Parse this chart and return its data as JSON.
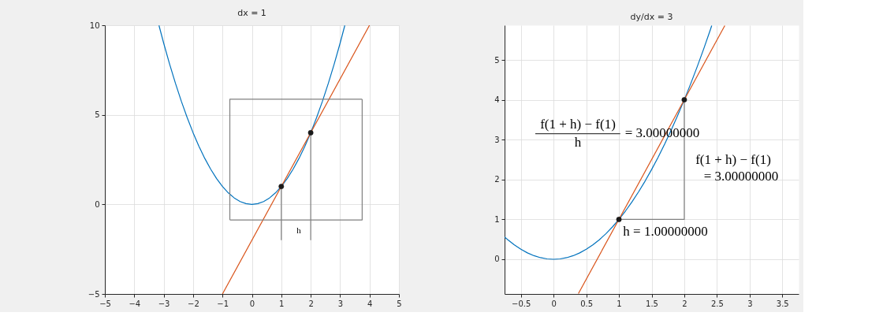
{
  "chart_data": [
    {
      "type": "line",
      "title": "dx = 1",
      "xlim": [
        -5,
        5
      ],
      "ylim": [
        -5,
        10
      ],
      "xticks": [
        -5,
        -4,
        -3,
        -2,
        -1,
        0,
        1,
        2,
        3,
        4,
        5
      ],
      "yticks": [
        -5,
        0,
        5,
        10
      ],
      "grid": true,
      "series": [
        {
          "color": "#0072bd",
          "x": [
            -3.16,
            -3,
            -2.8,
            -2.6,
            -2.4,
            -2.2,
            -2,
            -1.8,
            -1.6,
            -1.4,
            -1.2,
            -1,
            -0.8,
            -0.6,
            -0.4,
            -0.2,
            0,
            0.2,
            0.4,
            0.6,
            0.8,
            1,
            1.2,
            1.4,
            1.6,
            1.8,
            2,
            2.2,
            2.4,
            2.6,
            2.8,
            3,
            3.16
          ],
          "values": [
            9.99,
            9,
            7.84,
            6.76,
            5.76,
            4.84,
            4,
            3.24,
            2.56,
            1.96,
            1.44,
            1,
            0.64,
            0.36,
            0.16,
            0.04,
            0,
            0.04,
            0.16,
            0.36,
            0.64,
            1,
            1.44,
            1.96,
            2.56,
            3.24,
            4,
            4.84,
            5.76,
            6.76,
            7.84,
            9,
            9.99
          ]
        },
        {
          "color": "#d95319",
          "x": [
            -1,
            4
          ],
          "values": [
            -5,
            10
          ]
        },
        {
          "color": "#808080",
          "x": [
            -0.75,
            -0.75,
            3.75
          ],
          "values": [
            -0.87,
            5.87,
            5.87
          ]
        },
        {
          "color": "#808080",
          "x": [
            3.75,
            3.75,
            -0.75
          ],
          "values": [
            5.87,
            -0.87,
            -0.87
          ]
        },
        {
          "color": "#808080",
          "x": [
            1,
            1
          ],
          "values": [
            -2,
            1
          ]
        },
        {
          "color": "#808080",
          "x": [
            2,
            2
          ],
          "values": [
            -2,
            4
          ]
        },
        {
          "type": "scatter",
          "marker": "circle",
          "color": "#1a1a1a",
          "x": [
            1,
            2
          ],
          "values": [
            1,
            4
          ]
        }
      ],
      "annotations": [
        "h"
      ]
    },
    {
      "type": "line",
      "title": "dy/dx = 3",
      "xlim": [
        -0.75,
        3.75
      ],
      "ylim": [
        -0.87,
        5.87
      ],
      "xticks": [
        -0.5,
        0,
        0.5,
        1,
        1.5,
        2,
        2.5,
        3,
        3.5
      ],
      "yticks": [
        0,
        1,
        2,
        3,
        4,
        5
      ],
      "grid": true,
      "series": [
        {
          "color": "#0072bd",
          "x": [
            -0.75,
            -0.7,
            -0.6,
            -0.5,
            -0.4,
            -0.3,
            -0.2,
            -0.1,
            0,
            0.1,
            0.2,
            0.3,
            0.4,
            0.5,
            0.6,
            0.7,
            0.8,
            0.9,
            1,
            1.1,
            1.2,
            1.3,
            1.4,
            1.5,
            1.6,
            1.7,
            1.8,
            1.9,
            2,
            2.1,
            2.2,
            2.3,
            2.4,
            2.42
          ],
          "values": [
            0.56,
            0.49,
            0.36,
            0.25,
            0.16,
            0.09,
            0.04,
            0.01,
            0,
            0.01,
            0.04,
            0.09,
            0.16,
            0.25,
            0.36,
            0.49,
            0.64,
            0.81,
            1,
            1.21,
            1.44,
            1.69,
            1.96,
            2.25,
            2.56,
            2.89,
            3.24,
            3.61,
            4,
            4.41,
            4.84,
            5.29,
            5.76,
            5.86
          ]
        },
        {
          "color": "#d95319",
          "x": [
            0.38,
            2.62
          ],
          "values": [
            -0.86,
            5.86
          ]
        },
        {
          "color": "#808080",
          "x": [
            1,
            2,
            2
          ],
          "values": [
            1,
            1,
            4
          ]
        },
        {
          "color": "#404040",
          "x": [
            -0.28,
            1.02
          ],
          "values": [
            3.15,
            3.15
          ]
        },
        {
          "type": "scatter",
          "marker": "circle",
          "color": "#1a1a1a",
          "x": [
            1,
            2
          ],
          "values": [
            1,
            4
          ]
        }
      ],
      "annotations": [
        "f(1 + h) − f(1)",
        "h",
        "= 3.00000000",
        "f(1 + h) − f(1)",
        "= 3.00000000",
        "h = 1.00000000"
      ]
    }
  ]
}
